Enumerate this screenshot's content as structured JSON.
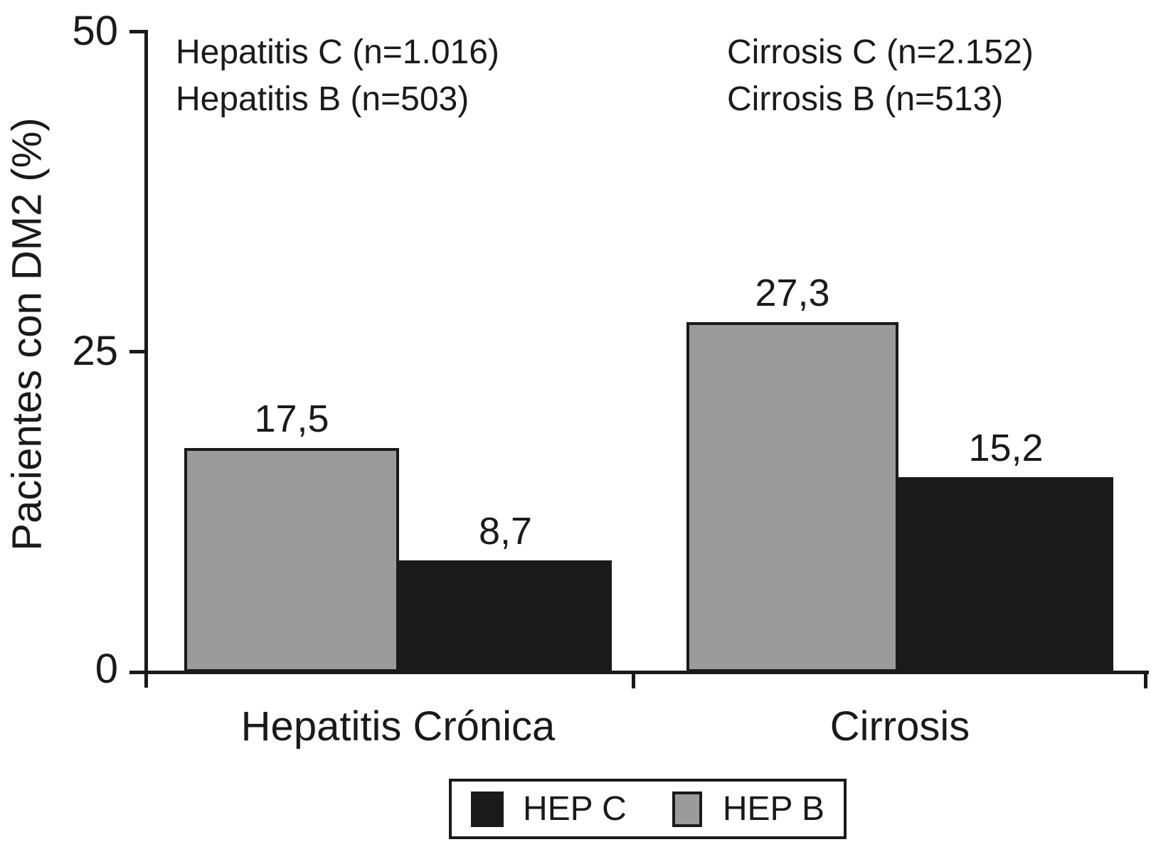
{
  "figure": {
    "background": "#ffffff"
  },
  "colors": {
    "hep_b_gray": "#9b9b9b",
    "hep_c_black": "#1a1a1a",
    "axis": "#1a1a1a"
  },
  "y_axis": {
    "title": "Pacientes con DM2 (%)",
    "tick_labels": [
      "0",
      "25",
      "50"
    ],
    "range": [
      0,
      50
    ]
  },
  "x_axis": {
    "categories": [
      "Hepatitis Crónica",
      "Cirrosis"
    ]
  },
  "annotations": {
    "left_line1": "Hepatitis C (n=1.016)",
    "left_line2": "Hepatitis B (n=503)",
    "right_line1": "Cirrosis C (n=2.152)",
    "right_line2": "Cirrosis B (n=513)"
  },
  "legend": {
    "items": [
      {
        "label": "HEP C",
        "color": "#1a1a1a"
      },
      {
        "label": "HEP B",
        "color": "#9b9b9b"
      }
    ]
  },
  "chart_data": {
    "type": "bar",
    "categories": [
      "Hepatitis Crónica",
      "Cirrosis"
    ],
    "series": [
      {
        "name": "HEP B",
        "color": "#9b9b9b",
        "values": [
          17.5,
          27.3
        ],
        "labels": [
          "17,5",
          "27,3"
        ]
      },
      {
        "name": "HEP C",
        "color": "#1a1a1a",
        "values": [
          8.7,
          15.2
        ],
        "labels": [
          "8,7",
          "15,2"
        ]
      }
    ],
    "title": "",
    "xlabel": "",
    "ylabel": "Pacientes con DM2 (%)",
    "ylim": [
      0,
      50
    ],
    "yticks": [
      0,
      25,
      50
    ],
    "grid": false,
    "legend_position": "bottom",
    "bar_value_labels_shown": true
  }
}
